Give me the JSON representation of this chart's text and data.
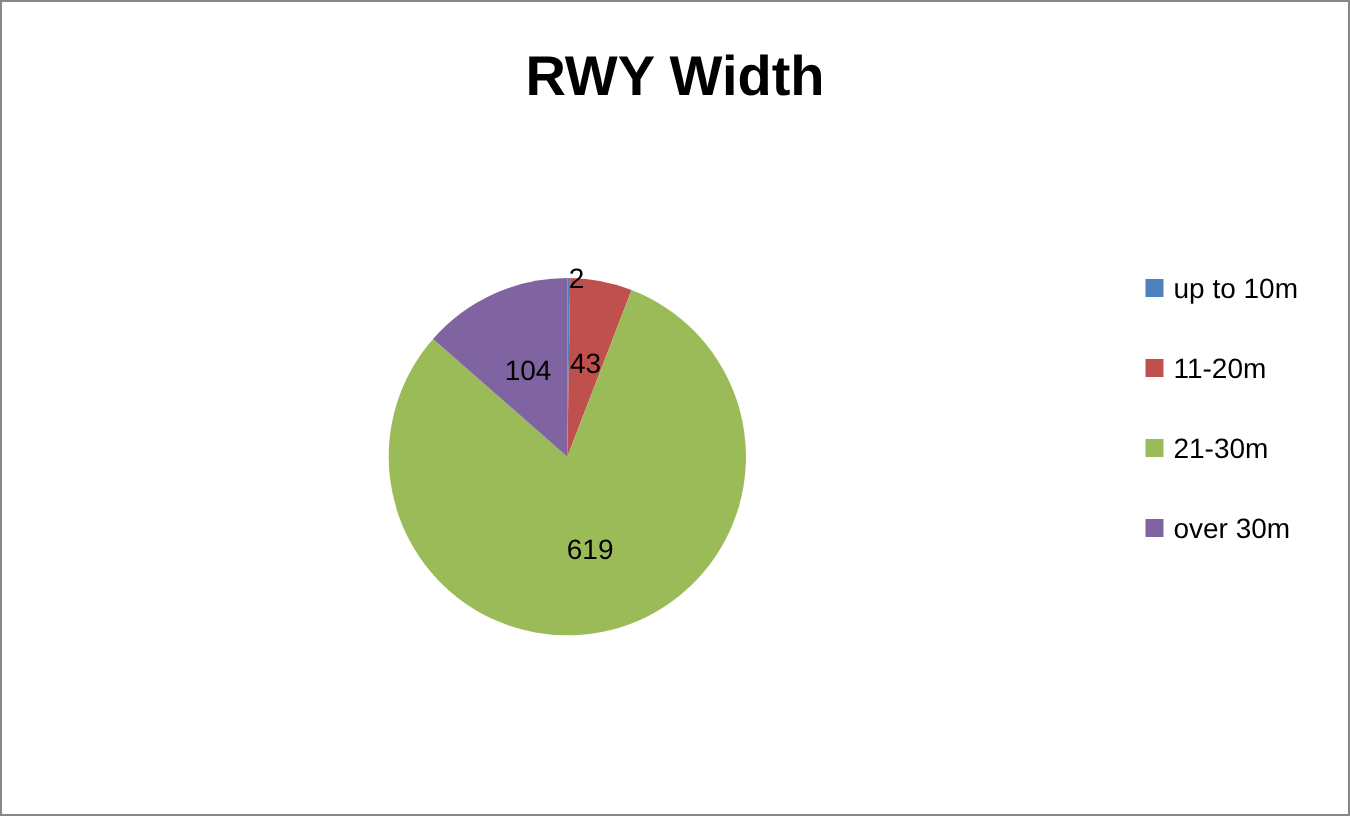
{
  "chart_data": {
    "type": "pie",
    "title": "RWY Width",
    "categories": [
      "up to 10m",
      "11-20m",
      "21-30m",
      "over 30m"
    ],
    "values": [
      2,
      43,
      619,
      104
    ],
    "colors": [
      "#4f81bd",
      "#c0504d",
      "#9bbb59",
      "#8064a2"
    ],
    "data_labels": true,
    "legend": "right"
  }
}
